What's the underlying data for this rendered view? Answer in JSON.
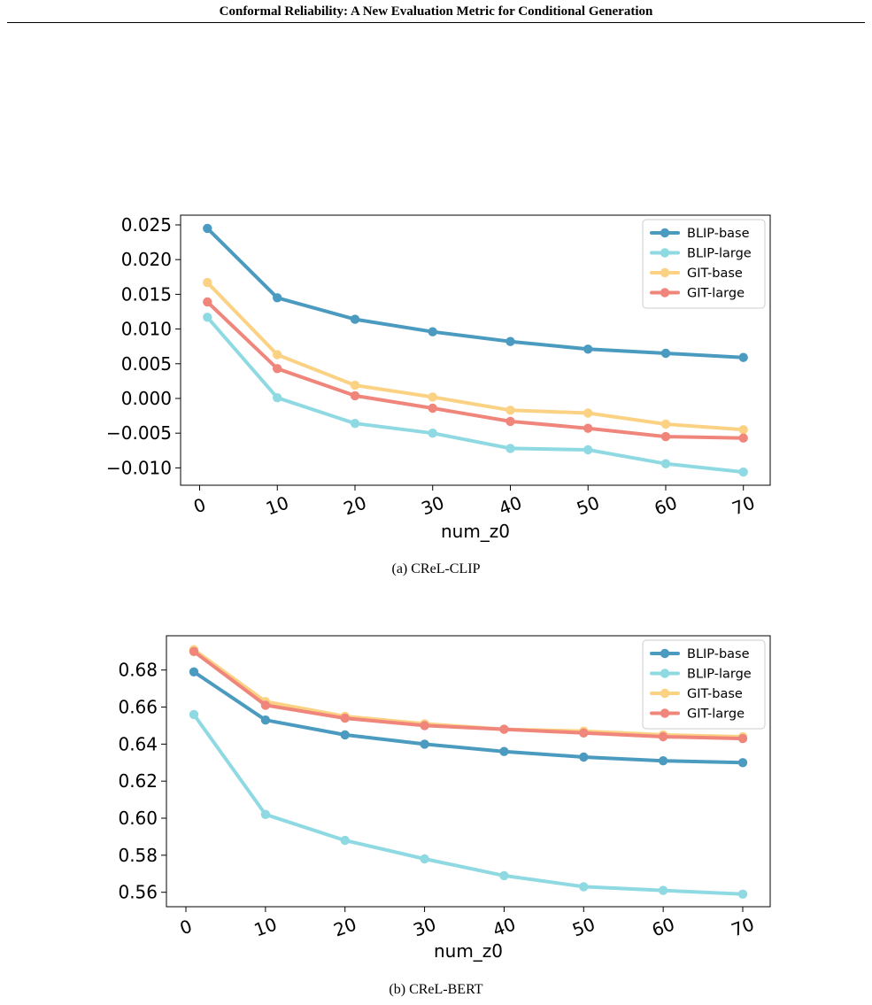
{
  "header": {
    "running_title": "Conformal Reliability: A New Evaluation Metric for Conditional Generation"
  },
  "chart_data": [
    {
      "type": "line",
      "caption": "(a) CReL-CLIP",
      "xlabel": "num_z0",
      "ylabel": "",
      "x": [
        1,
        10,
        20,
        30,
        40,
        50,
        60,
        70
      ],
      "xticks": [
        0,
        10,
        20,
        30,
        40,
        50,
        60,
        70
      ],
      "xlim": [
        -2.45,
        73.45
      ],
      "yticks": [
        -0.01,
        -0.005,
        0.0,
        0.005,
        0.01,
        0.015,
        0.02,
        0.025
      ],
      "ytick_labels": [
        "−0.010",
        "−0.005",
        "0.000",
        "0.005",
        "0.010",
        "0.015",
        "0.020",
        "0.025"
      ],
      "ylim": [
        -0.0125,
        0.0264
      ],
      "grid": false,
      "legend": "top-right",
      "series": [
        {
          "name": "BLIP-base",
          "color": "#4b9bc1",
          "values": [
            0.0245,
            0.0145,
            0.0114,
            0.0096,
            0.0082,
            0.0071,
            0.0065,
            0.0059
          ]
        },
        {
          "name": "BLIP-large",
          "color": "#8fdae2",
          "values": [
            0.0117,
            0.0001,
            -0.0036,
            -0.005,
            -0.0072,
            -0.0074,
            -0.0094,
            -0.0106
          ]
        },
        {
          "name": "GIT-base",
          "color": "#fbd283",
          "values": [
            0.0167,
            0.0063,
            0.0019,
            0.0002,
            -0.0017,
            -0.0021,
            -0.0037,
            -0.0045
          ]
        },
        {
          "name": "GIT-large",
          "color": "#f0867b",
          "values": [
            0.0139,
            0.0043,
            0.0004,
            -0.0014,
            -0.0033,
            -0.0043,
            -0.0055,
            -0.0057
          ]
        }
      ]
    },
    {
      "type": "line",
      "caption": "(b) CReL-BERT",
      "xlabel": "num_z0",
      "ylabel": "",
      "x": [
        1,
        10,
        20,
        30,
        40,
        50,
        60,
        70
      ],
      "xticks": [
        0,
        10,
        20,
        30,
        40,
        50,
        60,
        70
      ],
      "xlim": [
        -2.45,
        73.45
      ],
      "yticks": [
        0.56,
        0.58,
        0.6,
        0.62,
        0.64,
        0.66,
        0.68
      ],
      "ytick_labels": [
        "0.56",
        "0.58",
        "0.60",
        "0.62",
        "0.64",
        "0.66",
        "0.68"
      ],
      "ylim": [
        0.5522,
        0.6985
      ],
      "grid": false,
      "legend": "top-right",
      "series": [
        {
          "name": "BLIP-base",
          "color": "#4b9bc1",
          "values": [
            0.679,
            0.653,
            0.645,
            0.64,
            0.636,
            0.633,
            0.631,
            0.63
          ]
        },
        {
          "name": "BLIP-large",
          "color": "#8fdae2",
          "values": [
            0.656,
            0.602,
            0.588,
            0.578,
            0.569,
            0.563,
            0.561,
            0.559
          ]
        },
        {
          "name": "GIT-base",
          "color": "#fbd283",
          "values": [
            0.691,
            0.663,
            0.655,
            0.651,
            0.648,
            0.647,
            0.645,
            0.644
          ]
        },
        {
          "name": "GIT-large",
          "color": "#f0867b",
          "values": [
            0.69,
            0.661,
            0.654,
            0.65,
            0.648,
            0.646,
            0.644,
            0.643
          ]
        }
      ]
    }
  ]
}
